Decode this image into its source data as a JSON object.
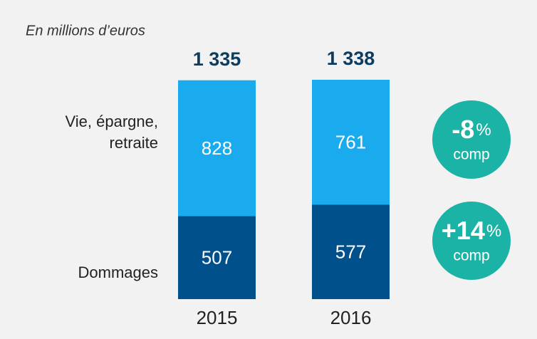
{
  "chart_data": {
    "type": "stacked-bar",
    "subtitle": "En millions d’euros",
    "categories": [
      "2015",
      "2016"
    ],
    "series": [
      {
        "name": "Dommages",
        "color": "#00508c",
        "values": [
          507,
          577
        ]
      },
      {
        "name": "Vie, épargne, retraite",
        "color": "#1aaaee",
        "values": [
          828,
          761
        ]
      }
    ],
    "totals": [
      1335,
      1338
    ],
    "total_labels": [
      "1 335",
      "1 338"
    ],
    "annotations": [
      {
        "series": "Vie, épargne, retraite",
        "value": -8,
        "label": "-8",
        "unit": "%",
        "note": "comp",
        "color": "#1ab3a6"
      },
      {
        "series": "Dommages",
        "value": 14,
        "label": "+14",
        "unit": "%",
        "note": "comp",
        "color": "#1ab3a6"
      }
    ]
  }
}
